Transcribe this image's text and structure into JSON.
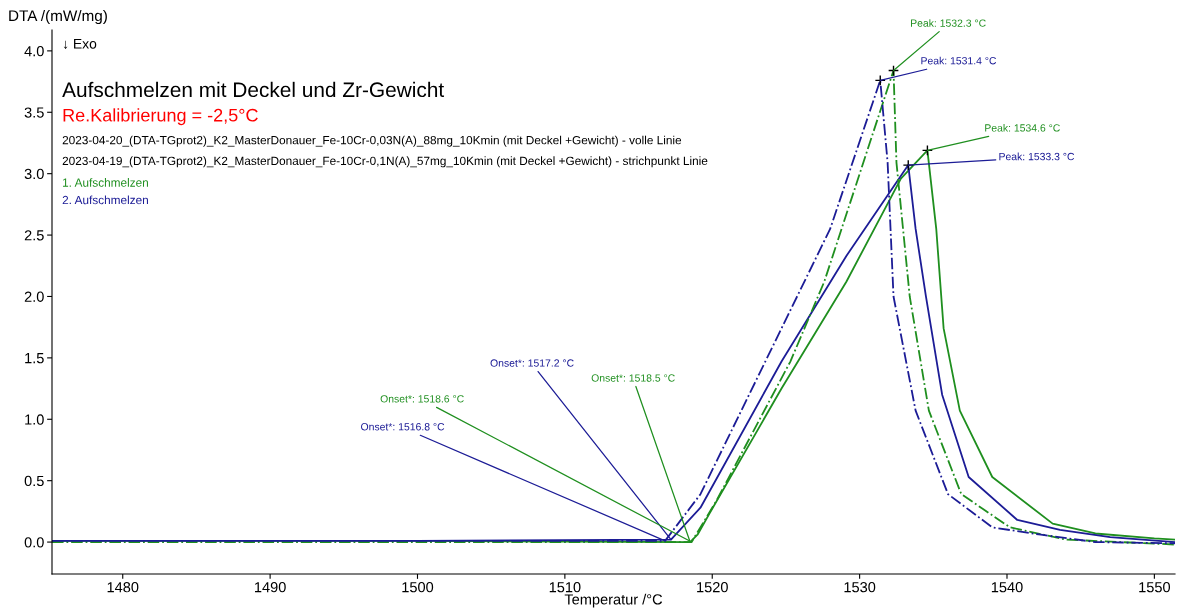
{
  "chart_data": {
    "type": "line",
    "title": "Aufschmelzen mit Deckel und Zr-Gewicht",
    "subtitle": "Re.Kalibrierung = -2,5°C",
    "xlabel": "Temperatur /°C",
    "ylabel": "DTA /(mW/mg)",
    "xlim": [
      1475.2,
      1551.4
    ],
    "ylim": [
      -0.26,
      4.17
    ],
    "xticks": [
      1480,
      1490,
      1500,
      1510,
      1520,
      1530,
      1540,
      1550
    ],
    "yticks": [
      {
        "value": 0,
        "label": "0.0"
      },
      {
        "value": 0.5,
        "label": "0.5"
      },
      {
        "value": 1,
        "label": "1.0"
      },
      {
        "value": 1.5,
        "label": "1.5"
      },
      {
        "value": 2,
        "label": "2.0"
      },
      {
        "value": 2.5,
        "label": "2.5"
      },
      {
        "value": 3,
        "label": "3.0"
      },
      {
        "value": 3.5,
        "label": "3.5"
      },
      {
        "value": 4,
        "label": "4.0"
      }
    ],
    "grid": false,
    "legend": false,
    "marker": "none",
    "series": [
      {
        "color": "#1f8f1f",
        "line_style": "solid",
        "x": [
          1475.2,
          1500,
          1518.5,
          1519.0,
          1519.8,
          1524.7,
          1529.1,
          1532.8,
          1534.6,
          1535.2,
          1535.7,
          1536.8,
          1539.0,
          1543.1,
          1546,
          1550,
          1551.4
        ],
        "values": [
          0.01,
          0.01,
          0.0,
          0.06,
          0.23,
          1.25,
          2.12,
          2.96,
          3.19,
          2.55,
          1.74,
          1.07,
          0.53,
          0.15,
          0.07,
          0.03,
          0.02
        ]
      },
      {
        "color": "#1c1c96",
        "line_style": "solid",
        "x": [
          1475.2,
          1500,
          1517.2,
          1519.2,
          1524.7,
          1529.1,
          1533.3,
          1533.8,
          1534.5,
          1535.6,
          1537.4,
          1540.7,
          1543.6,
          1547,
          1551.4
        ],
        "values": [
          0.01,
          0.01,
          0.02,
          0.28,
          1.47,
          2.33,
          3.07,
          2.55,
          2.0,
          1.2,
          0.53,
          0.18,
          0.1,
          0.04,
          0.0
        ]
      },
      {
        "color": "#1f8f1f",
        "line_style": "dashdot",
        "x": [
          1475.2,
          1500,
          1518.6,
          1520.3,
          1525.3,
          1527.6,
          1532.3,
          1532.5,
          1533.4,
          1534.7,
          1536.9,
          1540.2,
          1544,
          1551.4
        ],
        "values": [
          0.0,
          0.0,
          0.0,
          0.34,
          1.47,
          2.12,
          3.84,
          3.09,
          2.0,
          1.07,
          0.39,
          0.12,
          0.02,
          -0.02
        ]
      },
      {
        "color": "#1c1c96",
        "line_style": "dashdot",
        "x": [
          1475.2,
          1500,
          1516.8,
          1519.2,
          1524.7,
          1528.0,
          1531.4,
          1531.9,
          1532.3,
          1533.8,
          1536.0,
          1539.0,
          1542.3,
          1546,
          1551.4
        ],
        "values": [
          0.01,
          0.01,
          0.01,
          0.39,
          1.74,
          2.55,
          3.76,
          3.09,
          2.0,
          1.07,
          0.39,
          0.12,
          0.06,
          0.0,
          -0.01
        ]
      }
    ],
    "annotations": [
      "↓ Exo",
      "2023-04-20_(DTA-TGprot2)_K2_MasterDonauer_Fe-10Cr-0,03N(A)_88mg_10Kmin (mit Deckel +Gewicht) - volle Linie",
      "2023-04-19_(DTA-TGprot2)_K2_MasterDonauer_Fe-10Cr-0,1N(A)_57mg_10Kmin (mit Deckel +Gewicht) - strichpunkt Linie",
      "1. Aufschmelzen",
      "2. Aufschmelzen",
      {
        "text": "Peak: 1532.3 °C",
        "x": 1532.3,
        "y": 3.84
      },
      {
        "text": "Peak: 1531.4 °C",
        "x": 1531.4,
        "y": 3.76
      },
      {
        "text": "Peak: 1534.6 °C",
        "x": 1534.6,
        "y": 3.19
      },
      {
        "text": "Peak: 1533.3 °C",
        "x": 1533.3,
        "y": 3.07
      },
      {
        "text": "Onset*: 1517.2 °C",
        "x": 1517.2,
        "y": 0.02
      },
      {
        "text": "Onset*: 1516.8 °C",
        "x": 1516.8,
        "y": 0.01
      },
      {
        "text": "Onset*: 1518.6 °C",
        "x": 1518.6,
        "y": 0.0
      },
      {
        "text": "Onset*: 1518.5 °C",
        "x": 1518.5,
        "y": 0.0
      }
    ]
  }
}
